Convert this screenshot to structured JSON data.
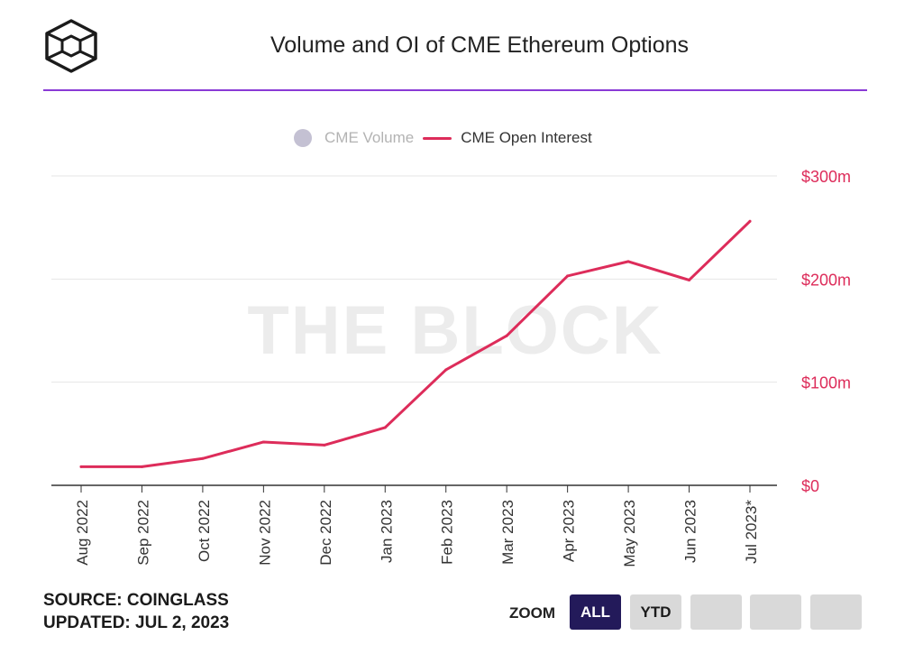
{
  "header": {
    "title": "Volume and OI of CME Ethereum Options"
  },
  "legend": {
    "volume_label": "CME Volume",
    "oi_label": "CME Open Interest"
  },
  "watermark": "THE BLOCK",
  "footer": {
    "source": "SOURCE: COINGLASS",
    "updated": "UPDATED: JUL 2, 2023"
  },
  "zoom": {
    "label": "ZOOM",
    "all_label": "ALL",
    "ytd_label": "YTD"
  },
  "colors": {
    "accent": "#8a3ad6",
    "series": "#dd2c5a",
    "volume": "#c4c1d3",
    "zoom_active": "#231a5a"
  },
  "chart_data": {
    "type": "line",
    "title": "Volume and OI of CME Ethereum Options",
    "categories": [
      "Aug 2022",
      "Sep 2022",
      "Oct 2022",
      "Nov 2022",
      "Dec 2022",
      "Jan 2023",
      "Feb 2023",
      "Mar 2023",
      "Apr 2023",
      "May 2023",
      "Jun 2023",
      "Jul 2023*"
    ],
    "series": [
      {
        "name": "CME Open Interest",
        "values": [
          18,
          18,
          26,
          42,
          39,
          56,
          112,
          145,
          203,
          217,
          199,
          256
        ]
      }
    ],
    "y_axis": {
      "position": "right",
      "ticks": [
        0,
        100,
        200,
        300
      ],
      "tick_labels": [
        "$0",
        "$100m",
        "$200m",
        "$300m"
      ],
      "unit": "$m"
    },
    "ylim": [
      0,
      300
    ],
    "grid": true,
    "legend_position": "top-center"
  }
}
